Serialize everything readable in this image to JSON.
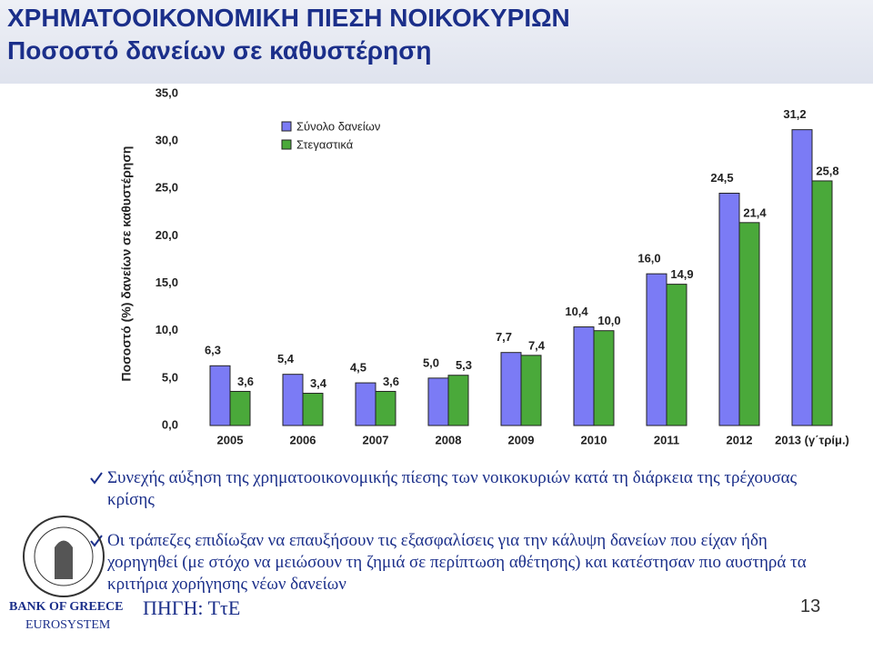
{
  "header": {
    "title": "ΧΡΗΜΑΤΟΟΙΚΟΝΟΜΙΚΗ ΠΙΕΣΗ ΝΟΙΚΟΚΥΡΙΩΝ",
    "subtitle": "Ποσοστό δανείων σε καθυστέρηση"
  },
  "chart_data": {
    "type": "bar",
    "y_label": "Ποσοστό (%) δανείων σε καθυστέρηση",
    "categories": [
      "2005",
      "2006",
      "2007",
      "2008",
      "2009",
      "2010",
      "2011",
      "2012",
      "2013 (γ΄τρίμ.)"
    ],
    "series": [
      {
        "name": "Σύνολο δανείων",
        "color": "#7b7bf5",
        "values": [
          6.3,
          5.4,
          4.5,
          5.0,
          7.7,
          10.4,
          16.0,
          24.5,
          31.2
        ],
        "value_labels": [
          "6,3",
          "5,4",
          "4,5",
          "5,0",
          "7,7",
          "10,4",
          "16,0",
          "24,5",
          "31,2"
        ]
      },
      {
        "name": "Στεγαστικά",
        "color": "#4aa93a",
        "values": [
          3.6,
          3.4,
          3.6,
          5.3,
          7.4,
          10.0,
          14.9,
          21.4,
          25.8
        ],
        "value_labels": [
          "3,6",
          "3,4",
          "3,6",
          "5,3",
          "7,4",
          "10,0",
          "14,9",
          "21,4",
          "25,8"
        ]
      }
    ],
    "ylim": [
      0,
      35
    ],
    "yticks": [
      {
        "value": 0,
        "label": "0,0"
      },
      {
        "value": 5,
        "label": "5,0"
      },
      {
        "value": 10,
        "label": "10,0"
      },
      {
        "value": 15,
        "label": "15,0"
      },
      {
        "value": 20,
        "label": "20,0"
      },
      {
        "value": 25,
        "label": "25,0"
      },
      {
        "value": 30,
        "label": "30,0"
      },
      {
        "value": 35,
        "label": "35,0"
      }
    ]
  },
  "bullets": [
    "Συνεχής αύξηση της χρηματοοικονομικής πίεσης των νοικοκυριών κατά τη διάρκεια της τρέχουσας κρίσης",
    "Οι τράπεζες επιδίωξαν να επαυξήσουν τις εξασφαλίσεις για την κάλυψη δανείων που είχαν ήδη χορηγηθεί (με στόχο να μειώσουν τη ζημιά σε περίπτωση αθέτησης) και κατέστησαν πιο αυστηρά τα κριτήρια χορήγησης νέων δανείων"
  ],
  "footer": {
    "bank": "BANK OF GREECE",
    "system": "EUROSYSTEM",
    "source": "ΠΗΓΗ: ΤτΕ",
    "page": "13"
  }
}
